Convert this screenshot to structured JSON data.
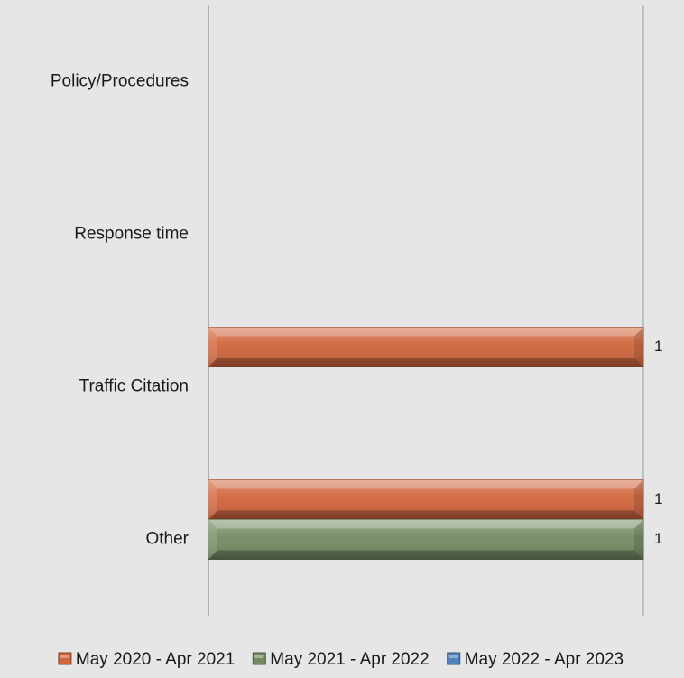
{
  "chart_data": {
    "type": "bar",
    "orientation": "horizontal",
    "categories": [
      "Policy/Procedures",
      "Response time",
      "Traffic Citation",
      "Other"
    ],
    "series": [
      {
        "name": "May 2020 - Apr 2021",
        "values": [
          0,
          0,
          1,
          1
        ],
        "color": "#d0643a"
      },
      {
        "name": "May 2021 - Apr 2022",
        "values": [
          0,
          0,
          0,
          1
        ],
        "color": "#748a62"
      },
      {
        "name": "May 2022 - Apr 2023",
        "values": [
          0,
          0,
          0,
          0
        ],
        "color": "#4f81bd"
      }
    ],
    "data_labels": true,
    "xlim": [
      0,
      1
    ],
    "grid": true,
    "legend": "bottom"
  }
}
